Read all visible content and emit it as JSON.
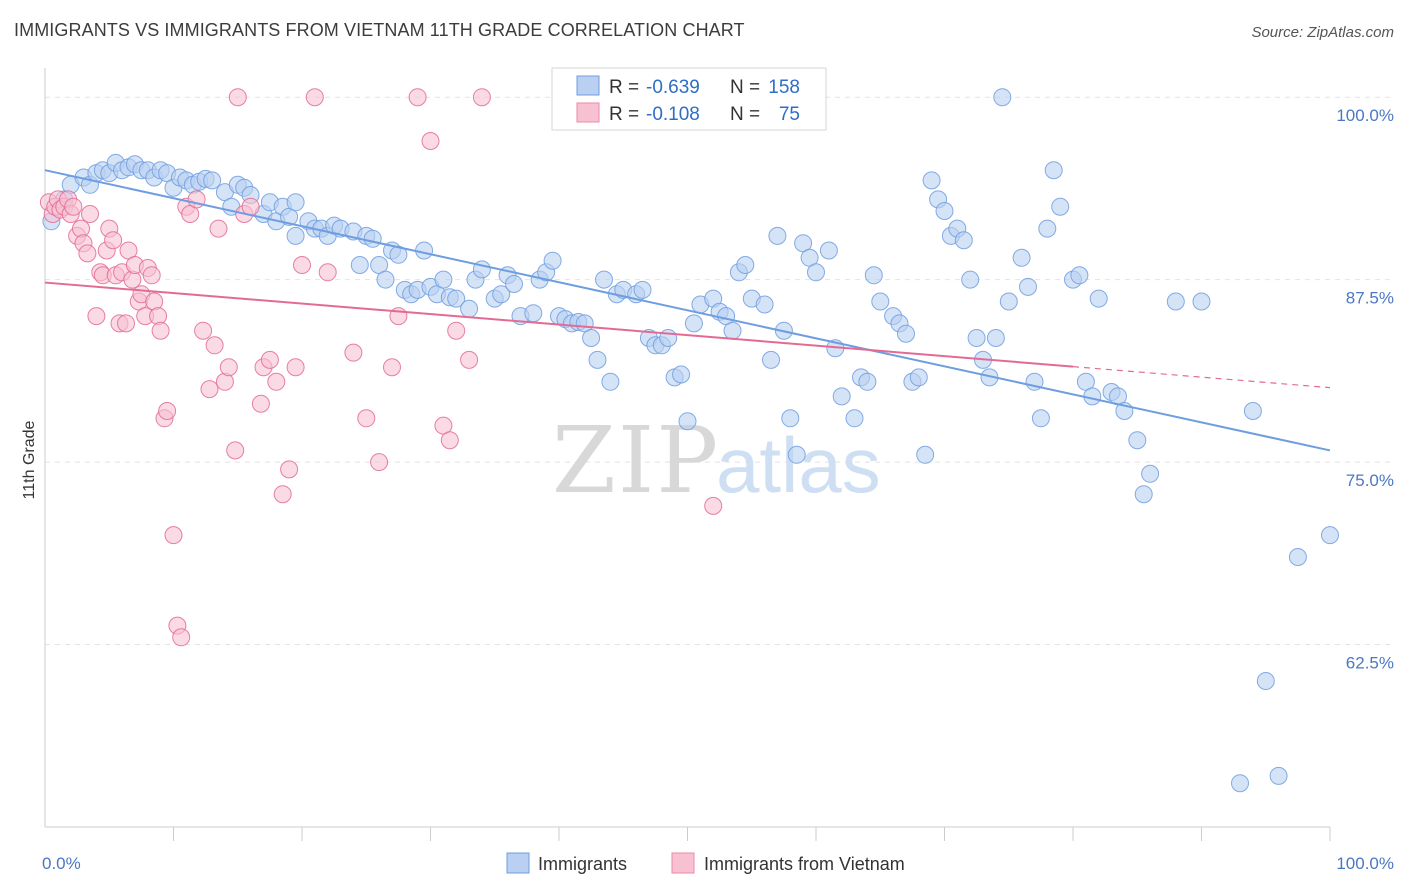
{
  "header": {
    "title": "IMMIGRANTS VS IMMIGRANTS FROM VIETNAM 11TH GRADE CORRELATION CHART",
    "source": "Source: ZipAtlas.com"
  },
  "watermark": {
    "zip": "ZIP",
    "atlas": "atlas"
  },
  "legend": {
    "r_label": "R =",
    "n_label": "N =",
    "rows": [
      {
        "r": "-0.639",
        "n": "158",
        "fill": "#b9d0f2",
        "stroke": "#6e9de0"
      },
      {
        "r": "-0.108",
        "n": "75",
        "fill": "#f7c1d2",
        "stroke": "#ea8aa8"
      }
    ]
  },
  "bottom_legend": [
    {
      "label": "Immigrants",
      "fill": "#b9d0f2",
      "stroke": "#6e9de0"
    },
    {
      "label": "Immigrants from Vietnam",
      "fill": "#f7c1d2",
      "stroke": "#ea8aa8"
    }
  ],
  "chart_data": {
    "type": "scatter",
    "xlabel": "",
    "ylabel": "11th Grade",
    "xlim": [
      0,
      100
    ],
    "ylim": [
      50,
      102
    ],
    "x_tick_labels": [
      "0.0%",
      "100.0%"
    ],
    "y_ticks": [
      {
        "value": 100,
        "label": "100.0%"
      },
      {
        "value": 87.5,
        "label": "87.5%"
      },
      {
        "value": 75,
        "label": "75.0%"
      },
      {
        "value": 62.5,
        "label": "62.5%"
      }
    ],
    "grid": true,
    "series": [
      {
        "name": "Immigrants",
        "color": "#6e9de0",
        "fill": "#b9d0f2",
        "trend": {
          "x0": 0,
          "y0": 95.0,
          "x1": 100,
          "y1": 75.8,
          "dash_from": 100
        },
        "points": [
          [
            0.5,
            91.5
          ],
          [
            1.5,
            93.0
          ],
          [
            2,
            94
          ],
          [
            3,
            94.5
          ],
          [
            3.5,
            94
          ],
          [
            4,
            94.8
          ],
          [
            4.5,
            95
          ],
          [
            5,
            94.8
          ],
          [
            5.5,
            95.5
          ],
          [
            6,
            95
          ],
          [
            6.5,
            95.2
          ],
          [
            7,
            95.4
          ],
          [
            7.5,
            95
          ],
          [
            8,
            95
          ],
          [
            8.5,
            94.5
          ],
          [
            9,
            95
          ],
          [
            9.5,
            94.8
          ],
          [
            10,
            93.8
          ],
          [
            10.5,
            94.5
          ],
          [
            11,
            94.3
          ],
          [
            11.5,
            94
          ],
          [
            12,
            94.2
          ],
          [
            12.5,
            94.4
          ],
          [
            13,
            94.3
          ],
          [
            14,
            93.5
          ],
          [
            14.5,
            92.5
          ],
          [
            15,
            94
          ],
          [
            15.5,
            93.8
          ],
          [
            16,
            93.3
          ],
          [
            17,
            92
          ],
          [
            17.5,
            92.8
          ],
          [
            18,
            91.5
          ],
          [
            18.5,
            92.5
          ],
          [
            19,
            91.8
          ],
          [
            19.5,
            92.8
          ],
          [
            19.5,
            90.5
          ],
          [
            20.5,
            91.5
          ],
          [
            21,
            91
          ],
          [
            21.5,
            91
          ],
          [
            22,
            90.5
          ],
          [
            22.5,
            91.2
          ],
          [
            23,
            91
          ],
          [
            24,
            90.8
          ],
          [
            24.5,
            88.5
          ],
          [
            25,
            90.5
          ],
          [
            25.5,
            90.3
          ],
          [
            26,
            88.5
          ],
          [
            26.5,
            87.5
          ],
          [
            27,
            89.5
          ],
          [
            27.5,
            89.2
          ],
          [
            28,
            86.8
          ],
          [
            28.5,
            86.5
          ],
          [
            29,
            86.8
          ],
          [
            29.5,
            89.5
          ],
          [
            30,
            87
          ],
          [
            30.5,
            86.5
          ],
          [
            31,
            87.5
          ],
          [
            31.5,
            86.3
          ],
          [
            32,
            86.2
          ],
          [
            33,
            85.5
          ],
          [
            33.5,
            87.5
          ],
          [
            34,
            88.2
          ],
          [
            35,
            86.2
          ],
          [
            35.5,
            86.5
          ],
          [
            36,
            87.8
          ],
          [
            36.5,
            87.2
          ],
          [
            37,
            85
          ],
          [
            38,
            85.2
          ],
          [
            38.5,
            87.5
          ],
          [
            39,
            88
          ],
          [
            39.5,
            88.8
          ],
          [
            40,
            85
          ],
          [
            40.5,
            84.8
          ],
          [
            41,
            84.5
          ],
          [
            41.5,
            84.6
          ],
          [
            42,
            84.5
          ],
          [
            42.5,
            83.5
          ],
          [
            43,
            82
          ],
          [
            43.5,
            87.5
          ],
          [
            44,
            80.5
          ],
          [
            44.5,
            86.5
          ],
          [
            45,
            86.8
          ],
          [
            46,
            86.5
          ],
          [
            46.5,
            86.8
          ],
          [
            47,
            83.5
          ],
          [
            47.5,
            83
          ],
          [
            48,
            83
          ],
          [
            48.5,
            83.5
          ],
          [
            49,
            80.8
          ],
          [
            49.5,
            81
          ],
          [
            50,
            77.8
          ],
          [
            50.5,
            84.5
          ],
          [
            51,
            85.8
          ],
          [
            52,
            86.2
          ],
          [
            52.5,
            85.3
          ],
          [
            53,
            85
          ],
          [
            53.5,
            84
          ],
          [
            54,
            88
          ],
          [
            54.5,
            88.5
          ],
          [
            55,
            86.2
          ],
          [
            56,
            85.8
          ],
          [
            56.5,
            82
          ],
          [
            57,
            90.5
          ],
          [
            57.5,
            84
          ],
          [
            58,
            78
          ],
          [
            58.5,
            75.5
          ],
          [
            59,
            90
          ],
          [
            59.5,
            89
          ],
          [
            60,
            88
          ],
          [
            61,
            89.5
          ],
          [
            61.5,
            82.8
          ],
          [
            62,
            79.5
          ],
          [
            63,
            78
          ],
          [
            63.5,
            80.8
          ],
          [
            64,
            80.5
          ],
          [
            64.5,
            87.8
          ],
          [
            65,
            86
          ],
          [
            66,
            85
          ],
          [
            66.5,
            84.5
          ],
          [
            67,
            83.8
          ],
          [
            67.5,
            80.5
          ],
          [
            68,
            80.8
          ],
          [
            68.5,
            75.5
          ],
          [
            69,
            94.3
          ],
          [
            69.5,
            93
          ],
          [
            70,
            92.2
          ],
          [
            70.5,
            90.5
          ],
          [
            71,
            91
          ],
          [
            71.5,
            90.2
          ],
          [
            72,
            87.5
          ],
          [
            72.5,
            83.5
          ],
          [
            73,
            82
          ],
          [
            73.5,
            80.8
          ],
          [
            74,
            83.5
          ],
          [
            74.5,
            100
          ],
          [
            75,
            86
          ],
          [
            76,
            89
          ],
          [
            76.5,
            87
          ],
          [
            77,
            80.5
          ],
          [
            77.5,
            78
          ],
          [
            78,
            91
          ],
          [
            78.5,
            95
          ],
          [
            79,
            92.5
          ],
          [
            80,
            87.5
          ],
          [
            80.5,
            87.8
          ],
          [
            81,
            80.5
          ],
          [
            81.5,
            79.5
          ],
          [
            82,
            86.2
          ],
          [
            83,
            79.8
          ],
          [
            83.5,
            79.5
          ],
          [
            84,
            78.5
          ],
          [
            85,
            76.5
          ],
          [
            85.5,
            72.8
          ],
          [
            86,
            74.2
          ],
          [
            88,
            86
          ],
          [
            90,
            86
          ],
          [
            93,
            53
          ],
          [
            94,
            78.5
          ],
          [
            95,
            60
          ],
          [
            96,
            53.5
          ],
          [
            97.5,
            68.5
          ],
          [
            100,
            70
          ]
        ]
      },
      {
        "name": "Immigrants from Vietnam",
        "color": "#e36b93",
        "fill": "#f7c1d2",
        "trend": {
          "x0": 0,
          "y0": 87.3,
          "x1": 100,
          "y1": 80.1,
          "dash_from": 80
        },
        "points": [
          [
            0.3,
            92.8
          ],
          [
            0.6,
            92
          ],
          [
            0.8,
            92.5
          ],
          [
            1,
            93
          ],
          [
            1.2,
            92.3
          ],
          [
            1.5,
            92.5
          ],
          [
            1.8,
            93
          ],
          [
            2,
            92
          ],
          [
            2.2,
            92.5
          ],
          [
            2.5,
            90.5
          ],
          [
            2.8,
            91
          ],
          [
            3,
            90
          ],
          [
            3.3,
            89.3
          ],
          [
            3.5,
            92
          ],
          [
            4,
            85
          ],
          [
            4.3,
            88
          ],
          [
            4.5,
            87.8
          ],
          [
            4.8,
            89.5
          ],
          [
            5,
            91
          ],
          [
            5.3,
            90.2
          ],
          [
            5.5,
            87.8
          ],
          [
            5.8,
            84.5
          ],
          [
            6,
            88
          ],
          [
            6.3,
            84.5
          ],
          [
            6.5,
            89.5
          ],
          [
            6.8,
            87.5
          ],
          [
            7,
            88.5
          ],
          [
            7.3,
            86
          ],
          [
            7.5,
            86.5
          ],
          [
            7.8,
            85
          ],
          [
            8,
            88.3
          ],
          [
            8.3,
            87.8
          ],
          [
            8.5,
            86
          ],
          [
            8.8,
            85
          ],
          [
            9,
            84
          ],
          [
            9.3,
            78
          ],
          [
            9.5,
            78.5
          ],
          [
            10,
            70
          ],
          [
            10.3,
            63.8
          ],
          [
            10.6,
            63
          ],
          [
            11,
            92.5
          ],
          [
            11.3,
            92
          ],
          [
            11.8,
            93
          ],
          [
            12.3,
            84
          ],
          [
            12.8,
            80
          ],
          [
            13.2,
            83
          ],
          [
            13.5,
            91
          ],
          [
            14,
            80.5
          ],
          [
            14.3,
            81.5
          ],
          [
            14.8,
            75.8
          ],
          [
            15,
            100
          ],
          [
            15.5,
            92
          ],
          [
            16,
            92.5
          ],
          [
            16.8,
            79
          ],
          [
            17,
            81.5
          ],
          [
            17.5,
            82
          ],
          [
            18,
            80.5
          ],
          [
            18.5,
            72.8
          ],
          [
            19,
            74.5
          ],
          [
            19.5,
            81.5
          ],
          [
            20,
            88.5
          ],
          [
            21,
            100
          ],
          [
            22,
            88
          ],
          [
            24,
            82.5
          ],
          [
            25,
            78
          ],
          [
            26,
            75
          ],
          [
            27,
            81.5
          ],
          [
            27.5,
            85
          ],
          [
            29,
            100
          ],
          [
            30,
            97
          ],
          [
            31,
            77.5
          ],
          [
            31.5,
            76.5
          ],
          [
            32,
            84
          ],
          [
            33,
            82
          ],
          [
            34,
            100
          ],
          [
            52,
            72
          ]
        ]
      }
    ]
  }
}
